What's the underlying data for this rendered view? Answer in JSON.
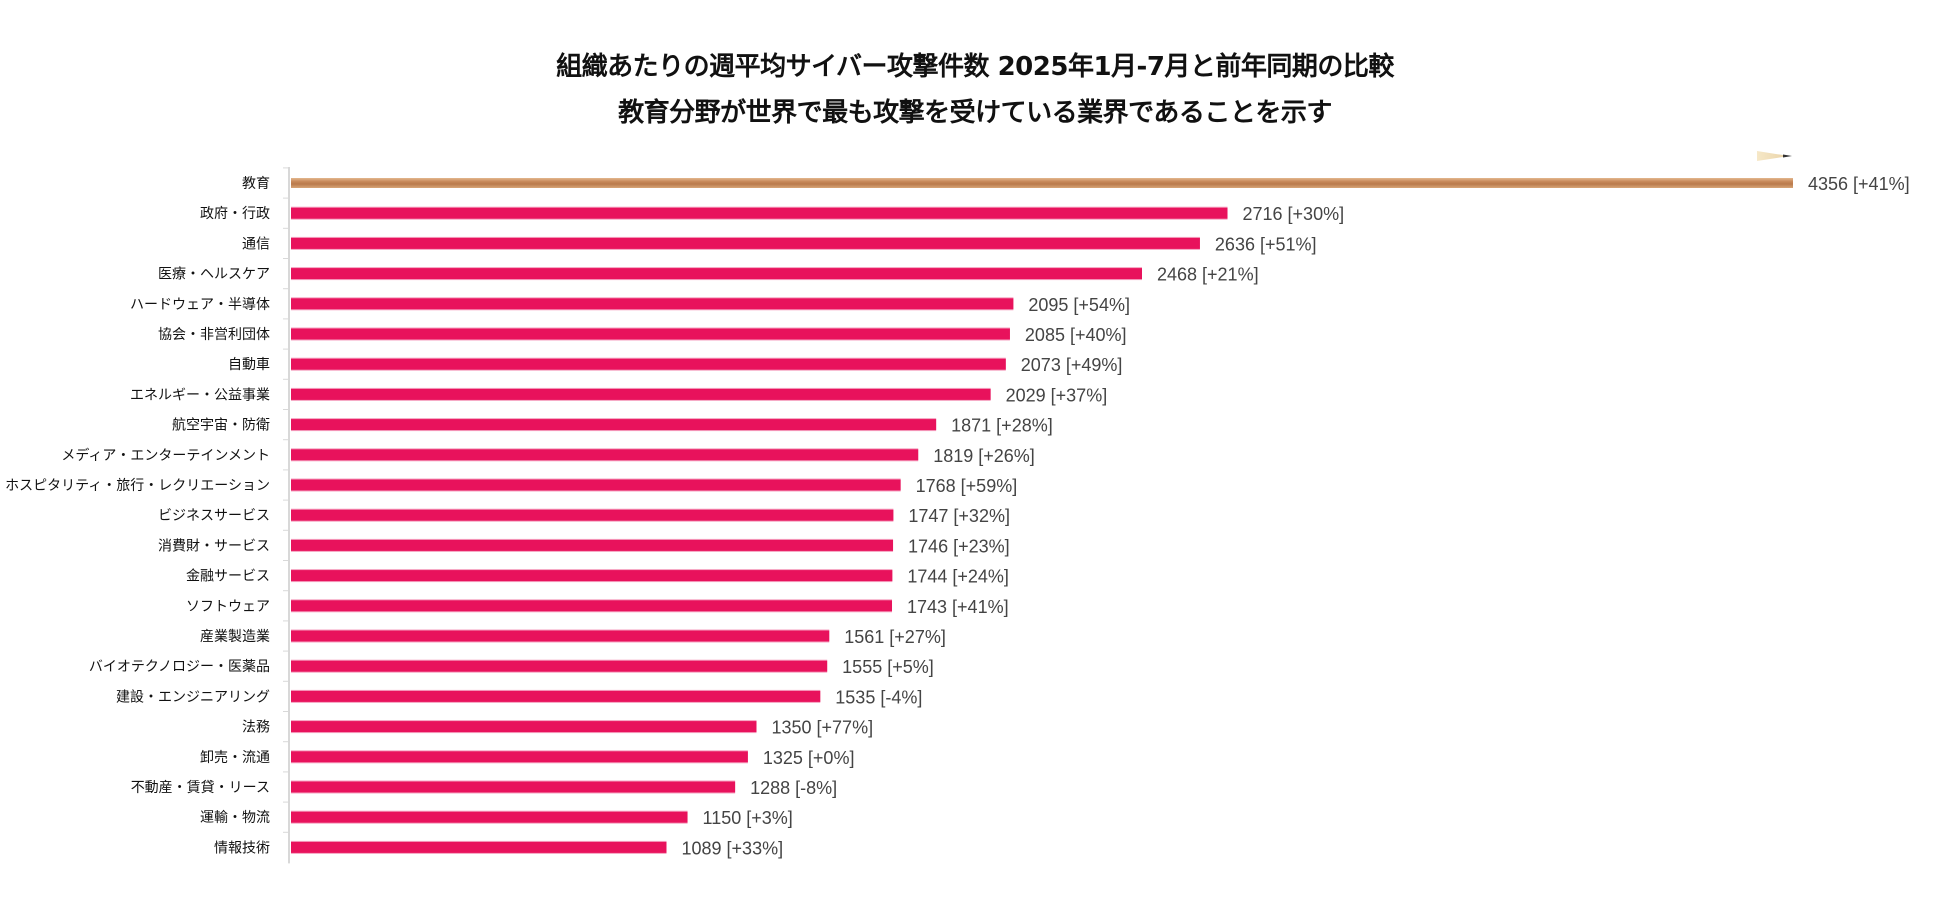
{
  "chart_data": {
    "type": "bar",
    "orientation": "horizontal",
    "title": "組織あたりの週平均サイバー攻撃件数 2025年1月-7月と前年同期の比較",
    "subtitle": "教育分野が世界で最も攻撃を受けている業界であることを示す",
    "xlabel": "",
    "ylabel": "",
    "xlim": [
      0,
      4356
    ],
    "grid": false,
    "legend": "none",
    "colors": {
      "highlight": "#C8895A",
      "highlight_light": "#E3B88E",
      "bar": "#E8125C",
      "bar_edge": "#F6A2C0",
      "axis": "#D8D8D8",
      "value_text": "#444444",
      "label_text": "#111111",
      "pencil_tip": "#F3E2BE",
      "pencil_lead": "#333333"
    },
    "categories": [
      "教育",
      "政府・行政",
      "通信",
      "医療・ヘルスケア",
      "ハードウェア・半導体",
      "協会・非営利団体",
      "自動車",
      "エネルギー・公益事業",
      "航空宇宙・防衛",
      "メディア・エンターテインメント",
      "ホスピタリティ・旅行・レクリエーション",
      "ビジネスサービス",
      "消費財・サービス",
      "金融サービス",
      "ソフトウェア",
      "産業製造業",
      "バイオテクノロジー・医薬品",
      "建設・エンジニアリング",
      "法務",
      "卸売・流通",
      "不動産・賃貸・リース",
      "運輸・物流",
      "情報技術"
    ],
    "values": [
      4356,
      2716,
      2636,
      2468,
      2095,
      2085,
      2073,
      2029,
      1871,
      1819,
      1768,
      1747,
      1746,
      1744,
      1743,
      1561,
      1555,
      1535,
      1350,
      1325,
      1288,
      1150,
      1089
    ],
    "yoy_change_pct": [
      "+41%",
      "+30%",
      "+51%",
      "+21%",
      "+54%",
      "+40%",
      "+49%",
      "+37%",
      "+28%",
      "+26%",
      "+59%",
      "+32%",
      "+23%",
      "+24%",
      "+41%",
      "+27%",
      "+5%",
      "-4%",
      "+77%",
      "+0%",
      "-8%",
      "+3%",
      "+33%"
    ],
    "highlighted_category": "教育",
    "value_label_format": "{value} [{change}]"
  }
}
